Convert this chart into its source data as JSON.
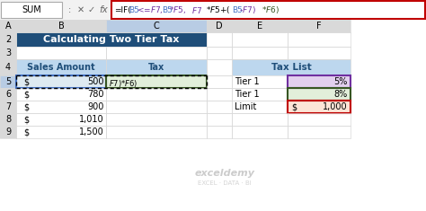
{
  "formula_bar_text": "=IF(B5<=$F$7,B5*$F$5,$F$7*$F$5+(B5-$F$7)*$F$6)",
  "title": "Calculating Two Tier Tax",
  "title_bg": "#1F4E79",
  "title_color": "#FFFFFF",
  "header_bg": "#BDD7EE",
  "header_text_color": "#1F4E79",
  "col_b_header": "Sales Amount",
  "col_c_header": "Tax",
  "sales_amounts": [
    "$ 500",
    "$ 780",
    "$ 900",
    "$ 1,010",
    "$ 1,500"
  ],
  "tax_formula_visible": "$F$7)*$F$6)",
  "tax_list_header": "Tax List",
  "tax_list_header_bg": "#BDD7EE",
  "tax_list_header_color": "#1F4E79",
  "tax_rows": [
    {
      "label": "Tier 1",
      "value": "5%",
      "value_bg": "#E2CFEE"
    },
    {
      "label": "Tier 1",
      "value": "8%",
      "value_bg": "#E2EFDA"
    },
    {
      "label": "Limit",
      "value": "$ 1,000",
      "value_bg": "#FCE4D6"
    }
  ],
  "col_headers": [
    "A",
    "B",
    "C",
    "D",
    "E",
    "F"
  ],
  "bg_color": "#FFFFFF",
  "grid_color": "#D9D9D9",
  "formula_border": "#C00000",
  "name_box": "SUM",
  "formula_text_color_blue": "#4472C4",
  "formula_text_color_purple": "#7030A0",
  "formula_text_color_green": "#375623",
  "cell_b5_border": "#4472C4",
  "cell_c5_border": "#375623",
  "tax_list_cell_purple_border": "#7030A0",
  "tax_list_cell_green_border": "#375623",
  "tax_list_cell_red_border": "#C00000",
  "formula_segments": [
    {
      "text": "=IF(",
      "color": "black"
    },
    {
      "text": "B5",
      "color": "#4472C4"
    },
    {
      "text": "<=$F$7,",
      "color": "#7030A0"
    },
    {
      "text": "B5",
      "color": "#4472C4"
    },
    {
      "text": "*$F$5,",
      "color": "#7030A0"
    },
    {
      "text": "$F$7",
      "color": "#7030A0"
    },
    {
      "text": "*$F$5+(",
      "color": "black"
    },
    {
      "text": "B5",
      "color": "#4472C4"
    },
    {
      "text": "-$F$7)",
      "color": "#7030A0"
    },
    {
      "text": "*$F$6)",
      "color": "#375623"
    }
  ]
}
